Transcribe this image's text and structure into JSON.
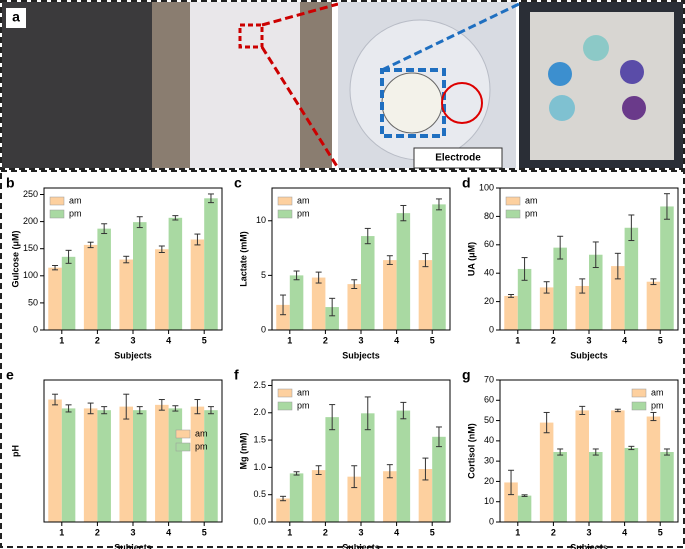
{
  "panel_a": {
    "label": "a",
    "inset_label": "Electrode"
  },
  "chart_data": [
    {
      "type": "bar",
      "panel": "b",
      "ylabel": "Gulcose (μM)",
      "xlabel": "Subjects",
      "categories": [
        "1",
        "2",
        "3",
        "4",
        "5"
      ],
      "series": [
        {
          "name": "am",
          "color": "#fdd09f",
          "values": [
            115,
            157,
            130,
            149,
            167
          ],
          "errors": [
            4,
            5,
            6,
            6,
            10
          ]
        },
        {
          "name": "pm",
          "color": "#a9d9a2",
          "values": [
            135,
            187,
            199,
            207,
            243
          ],
          "errors": [
            12,
            9,
            10,
            4,
            8
          ]
        }
      ],
      "ylim": [
        0,
        262
      ],
      "yticks": [
        0,
        50,
        100,
        150,
        200,
        250
      ],
      "legend": "upper left"
    },
    {
      "type": "bar",
      "panel": "c",
      "ylabel": "Lactate (mM)",
      "xlabel": "Subjects",
      "categories": [
        "1",
        "2",
        "3",
        "4",
        "5"
      ],
      "series": [
        {
          "name": "am",
          "color": "#fdd09f",
          "values": [
            2.3,
            4.8,
            4.2,
            6.4,
            6.4
          ],
          "errors": [
            0.9,
            0.5,
            0.4,
            0.4,
            0.6
          ]
        },
        {
          "name": "pm",
          "color": "#a9d9a2",
          "values": [
            5.0,
            2.1,
            8.6,
            10.7,
            11.5
          ],
          "errors": [
            0.4,
            0.8,
            0.7,
            0.7,
            0.5
          ]
        }
      ],
      "ylim": [
        0,
        13
      ],
      "yticks": [
        0,
        5,
        10
      ],
      "legend": "upper left"
    },
    {
      "type": "bar",
      "panel": "d",
      "ylabel": "UA (μM)",
      "xlabel": "Subjects",
      "categories": [
        "1",
        "2",
        "3",
        "4",
        "5"
      ],
      "series": [
        {
          "name": "am",
          "color": "#fdd09f",
          "values": [
            24,
            30,
            31,
            45,
            34
          ],
          "errors": [
            1,
            4,
            5,
            9,
            2
          ]
        },
        {
          "name": "pm",
          "color": "#a9d9a2",
          "values": [
            43,
            58,
            53,
            72,
            87
          ],
          "errors": [
            8,
            8,
            9,
            9,
            9
          ]
        }
      ],
      "ylim": [
        0,
        100
      ],
      "yticks": [
        0,
        20,
        40,
        60,
        80,
        100
      ],
      "legend": "upper left"
    },
    {
      "type": "bar",
      "panel": "e",
      "ylabel": "pH",
      "xlabel": "Subjects",
      "categories": [
        "1",
        "2",
        "3",
        "4",
        "5"
      ],
      "series": [
        {
          "name": "am",
          "color": "#fdd09f",
          "values": [
            6.9,
            6.4,
            6.5,
            6.6,
            6.5
          ],
          "errors": [
            0.3,
            0.3,
            0.7,
            0.3,
            0.4
          ]
        },
        {
          "name": "pm",
          "color": "#a9d9a2",
          "values": [
            6.4,
            6.3,
            6.3,
            6.4,
            6.3
          ],
          "errors": [
            0.2,
            0.2,
            0.2,
            0.15,
            0.2
          ]
        }
      ],
      "ylim": [
        0,
        8
      ],
      "legend": "right"
    },
    {
      "type": "bar",
      "panel": "f",
      "ylabel": "Mg (mM)",
      "xlabel": "Subjects",
      "categories": [
        "1",
        "2",
        "3",
        "4",
        "5"
      ],
      "series": [
        {
          "name": "am",
          "color": "#fdd09f",
          "values": [
            0.43,
            0.95,
            0.83,
            0.93,
            0.97
          ],
          "errors": [
            0.04,
            0.08,
            0.2,
            0.12,
            0.2
          ]
        },
        {
          "name": "pm",
          "color": "#a9d9a2",
          "values": [
            0.89,
            1.92,
            1.99,
            2.04,
            1.56
          ],
          "errors": [
            0.03,
            0.23,
            0.3,
            0.15,
            0.18
          ]
        }
      ],
      "ylim": [
        0,
        2.6
      ],
      "yticks": [
        {
          "value": 0,
          "label": "0.0"
        },
        0.5,
        {
          "value": 1,
          "label": "1.0"
        },
        1.5,
        {
          "value": 2,
          "label": "2.0"
        },
        2.5
      ],
      "legend": "upper left"
    },
    {
      "type": "bar",
      "panel": "g",
      "ylabel": "Cortisol (nM)",
      "xlabel": "Subjects",
      "categories": [
        "1",
        "2",
        "3",
        "4",
        "5"
      ],
      "series": [
        {
          "name": "am",
          "color": "#fdd09f",
          "values": [
            19.5,
            49,
            55,
            55,
            52
          ],
          "errors": [
            6,
            5,
            2,
            0.6,
            2
          ]
        },
        {
          "name": "pm",
          "color": "#a9d9a2",
          "values": [
            13,
            34.5,
            34.5,
            36.5,
            34.5
          ],
          "errors": [
            0.4,
            1.5,
            1.5,
            0.8,
            1.5
          ]
        }
      ],
      "ylim": [
        0,
        70
      ],
      "yticks": [
        0,
        10,
        20,
        30,
        40,
        50,
        60,
        70
      ],
      "legend": "upper right"
    }
  ]
}
